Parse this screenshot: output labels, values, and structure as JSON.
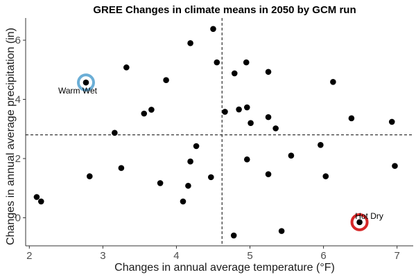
{
  "chart_data": {
    "type": "scatter",
    "title": "GREE Changes in climate means in 2050 by GCM run",
    "xlabel": "Changes in annual average temperature (°F)",
    "ylabel": "Changes in annual average precipitation (in)",
    "xlim": [
      1.95,
      7.22
    ],
    "ylim": [
      -0.95,
      6.75
    ],
    "x_ticks": [
      2,
      3,
      4,
      5,
      6,
      7
    ],
    "y_ticks": [
      0,
      2,
      4,
      6
    ],
    "grid": false,
    "ref_lines": {
      "vertical_x": 4.62,
      "horizontal_y": 2.8
    },
    "points": [
      {
        "x": 2.1,
        "y": 0.7
      },
      {
        "x": 2.16,
        "y": 0.55
      },
      {
        "x": 2.82,
        "y": 1.4
      },
      {
        "x": 3.16,
        "y": 2.87
      },
      {
        "x": 3.25,
        "y": 1.68
      },
      {
        "x": 3.32,
        "y": 5.08
      },
      {
        "x": 3.56,
        "y": 3.52
      },
      {
        "x": 3.66,
        "y": 3.65
      },
      {
        "x": 3.78,
        "y": 1.17
      },
      {
        "x": 3.86,
        "y": 4.65
      },
      {
        "x": 4.09,
        "y": 0.55
      },
      {
        "x": 4.16,
        "y": 1.08
      },
      {
        "x": 4.19,
        "y": 1.9
      },
      {
        "x": 4.19,
        "y": 5.9
      },
      {
        "x": 4.27,
        "y": 2.42
      },
      {
        "x": 4.47,
        "y": 1.37
      },
      {
        "x": 4.5,
        "y": 6.38
      },
      {
        "x": 4.55,
        "y": 5.25
      },
      {
        "x": 4.66,
        "y": 3.58
      },
      {
        "x": 4.78,
        "y": -0.6
      },
      {
        "x": 4.79,
        "y": 4.88
      },
      {
        "x": 4.85,
        "y": 3.66
      },
      {
        "x": 4.95,
        "y": 5.25
      },
      {
        "x": 4.96,
        "y": 3.73
      },
      {
        "x": 4.96,
        "y": 1.97
      },
      {
        "x": 5.01,
        "y": 3.2
      },
      {
        "x": 5.25,
        "y": 4.93
      },
      {
        "x": 5.25,
        "y": 3.4
      },
      {
        "x": 5.25,
        "y": 1.47
      },
      {
        "x": 5.35,
        "y": 3.02
      },
      {
        "x": 5.43,
        "y": -0.45
      },
      {
        "x": 5.56,
        "y": 2.1
      },
      {
        "x": 5.96,
        "y": 2.46
      },
      {
        "x": 6.03,
        "y": 1.4
      },
      {
        "x": 6.13,
        "y": 4.59
      },
      {
        "x": 6.38,
        "y": 3.36
      },
      {
        "x": 6.93,
        "y": 3.24
      },
      {
        "x": 6.97,
        "y": 1.75
      },
      {
        "x": 2.77,
        "y": 4.57
      },
      {
        "x": 6.49,
        "y": -0.15
      }
    ],
    "highlights": [
      {
        "label": "Warm Wet",
        "x": 2.77,
        "y": 4.57,
        "color": "#6baed6"
      },
      {
        "label": "Hot Dry",
        "x": 6.49,
        "y": -0.15,
        "color": "#d62728"
      }
    ],
    "point_color": "#000000",
    "axis_color": "#333333"
  }
}
